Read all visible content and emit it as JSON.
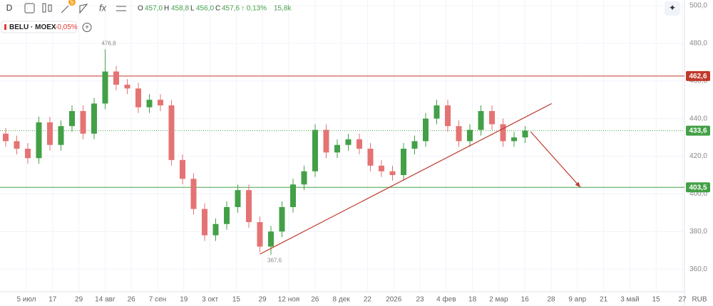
{
  "toolbar": {
    "interval": "D",
    "badge": "5",
    "ohlc": {
      "o_label": "O",
      "o": "457,0",
      "h_label": "H",
      "h": "458,8",
      "l_label": "L",
      "l": "456,0",
      "c_label": "C",
      "c": "457,6",
      "change": "↑ 0,13%",
      "volume": "15,8k"
    }
  },
  "chart_data": {
    "type": "candlestick",
    "symbol": "BELU · MOEX",
    "change": "-0,05%",
    "currency": "RUB",
    "up_color": "#43a047",
    "down_color": "#e57373",
    "open": [
      432,
      428,
      424,
      419,
      438,
      426,
      436,
      444,
      432,
      448,
      465,
      458,
      456,
      446,
      450,
      447,
      418,
      408,
      392,
      378,
      384,
      393,
      402,
      385,
      372,
      380,
      393,
      405,
      412,
      434,
      422,
      426,
      429,
      424,
      415,
      412,
      410,
      424,
      428,
      440,
      447,
      436,
      428,
      434,
      444,
      437,
      428,
      430
    ],
    "high": [
      435,
      431,
      427,
      441,
      441,
      439,
      447,
      447,
      451,
      476.8,
      468,
      461,
      459,
      453,
      453,
      450,
      421,
      411,
      395,
      387,
      396,
      405,
      405,
      388,
      383,
      396,
      408,
      415,
      437,
      437,
      429,
      432,
      432,
      427,
      418,
      415,
      427,
      431,
      443,
      450,
      450,
      439,
      437,
      447,
      447,
      440,
      433,
      436
    ],
    "low": [
      425,
      421,
      416,
      416,
      423,
      423,
      433,
      429,
      429,
      445,
      455,
      453,
      443,
      443,
      444,
      415,
      405,
      389,
      375,
      375,
      381,
      390,
      382,
      369,
      367.6,
      377,
      390,
      402,
      409,
      419,
      419,
      423,
      421,
      412,
      409,
      407,
      407,
      421,
      425,
      437,
      433,
      425,
      425,
      431,
      434,
      425,
      425,
      427
    ],
    "close": [
      428,
      424,
      419,
      438,
      426,
      436,
      444,
      432,
      448,
      465,
      458,
      456,
      446,
      450,
      447,
      418,
      408,
      392,
      378,
      384,
      393,
      402,
      385,
      372,
      380,
      393,
      405,
      412,
      434,
      422,
      426,
      429,
      424,
      415,
      412,
      410,
      424,
      428,
      440,
      447,
      436,
      428,
      434,
      444,
      437,
      428,
      430,
      433.6
    ],
    "ylim": [
      348,
      503
    ],
    "yticks": [
      {
        "value": 360,
        "label": "360,0"
      },
      {
        "value": 380,
        "label": "380,0"
      },
      {
        "value": 400,
        "label": "400,0"
      },
      {
        "value": 420,
        "label": "420,0"
      },
      {
        "value": 440,
        "label": "440,0"
      },
      {
        "value": 460,
        "label": "460,0"
      },
      {
        "value": 480,
        "label": "480,0"
      },
      {
        "value": 500,
        "label": "500,0"
      }
    ],
    "x_labels": [
      "5 июл",
      "17",
      "29",
      "14 авг",
      "26",
      "7 сен",
      "19",
      "3 окт",
      "15",
      "29",
      "12 ноя",
      "26",
      "8 дек",
      "22",
      "2026",
      "23",
      "4 фев",
      "18",
      "2 мар",
      "16",
      "28",
      "9 апр",
      "21",
      "3 май",
      "15",
      "27"
    ],
    "levels": [
      {
        "value": 462.6,
        "label": "462,6",
        "color": "#c0392b"
      },
      {
        "value": 433.6,
        "label": "433,6",
        "color": "#43a047"
      },
      {
        "value": 403.5,
        "label": "403,5",
        "color": "#43a047"
      }
    ],
    "annotations": [
      {
        "text": "476,8",
        "candle": 9,
        "value": 476.8
      },
      {
        "text": "367,6",
        "candle": 24,
        "value": 367.6
      }
    ],
    "trendline": {
      "from": [
        23,
        368
      ],
      "to": [
        49.4,
        448
      ],
      "color": "#c0392b"
    },
    "arrow": {
      "from": [
        47.5,
        433
      ],
      "to": [
        52,
        403.5
      ],
      "color": "#c0392b"
    }
  }
}
